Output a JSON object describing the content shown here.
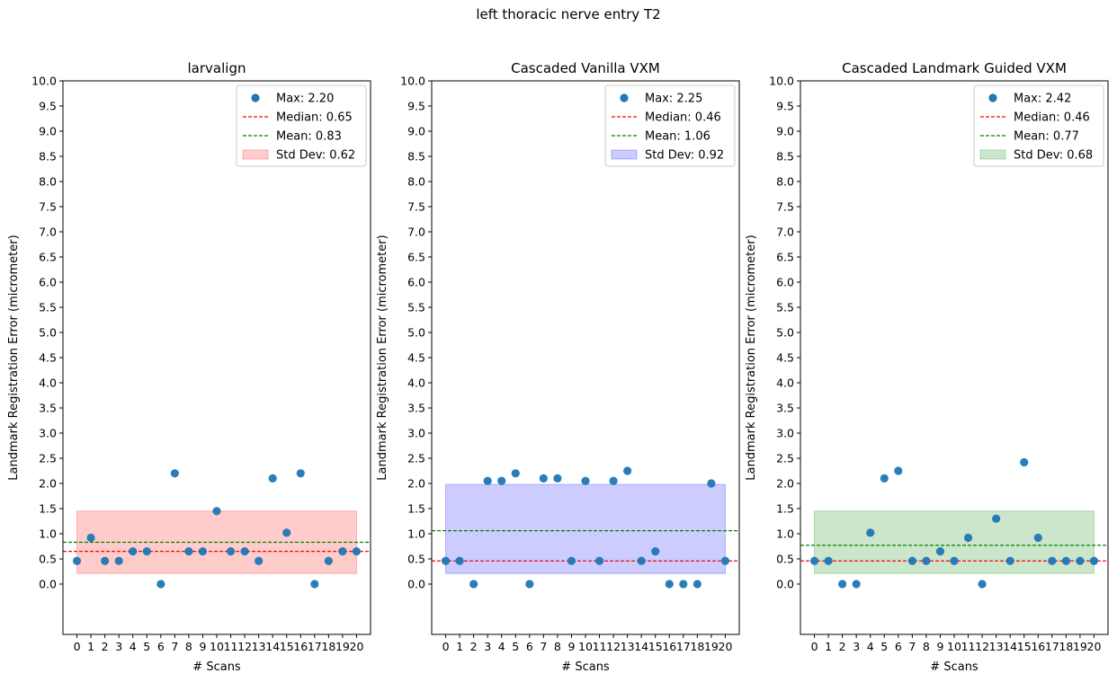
{
  "suptitle": "left thoracic nerve entry T2",
  "colors": {
    "points": "#1f77b4",
    "median": "#ff0000",
    "mean": "#008000",
    "band_fill_red": "#ff0000",
    "band_fill_blue": "#0000ff",
    "band_fill_green": "#008000"
  },
  "chart_data": [
    {
      "type": "scatter",
      "title": "larvalign",
      "xlabel": "# Scans",
      "ylabel": "Landmark Registration Error (micrometer)",
      "ylim": [
        -1.0,
        10.0
      ],
      "yticks": [
        "0.0",
        "0.5",
        "1.0",
        "1.5",
        "2.0",
        "2.5",
        "3.0",
        "3.5",
        "4.0",
        "4.5",
        "5.0",
        "5.5",
        "6.0",
        "6.5",
        "7.0",
        "7.5",
        "8.0",
        "8.5",
        "9.0",
        "9.5",
        "10.0"
      ],
      "x": [
        0,
        1,
        2,
        3,
        4,
        5,
        6,
        7,
        8,
        9,
        10,
        11,
        12,
        13,
        14,
        15,
        16,
        17,
        18,
        19,
        20
      ],
      "values": [
        0.46,
        0.92,
        0.46,
        0.46,
        0.65,
        0.65,
        0.0,
        2.2,
        0.65,
        0.65,
        1.45,
        0.65,
        0.65,
        0.46,
        2.1,
        1.02,
        2.2,
        0.0,
        0.46,
        0.65,
        0.65
      ],
      "median": 0.65,
      "mean": 0.83,
      "std": 0.62,
      "band_color": "#ff0000",
      "legend": {
        "placement": "upper right",
        "max_label": "Max: 2.20",
        "median_label": "Median: 0.65",
        "mean_label": "Mean: 0.83",
        "std_label": "Std Dev: 0.62"
      }
    },
    {
      "type": "scatter",
      "title": "Cascaded Vanilla VXM",
      "xlabel": "# Scans",
      "ylabel": "Landmark Registration Error (micrometer)",
      "ylim": [
        -1.0,
        10.0
      ],
      "yticks": [
        "0.0",
        "0.5",
        "1.0",
        "1.5",
        "2.0",
        "2.5",
        "3.0",
        "3.5",
        "4.0",
        "4.5",
        "5.0",
        "5.5",
        "6.0",
        "6.5",
        "7.0",
        "7.5",
        "8.0",
        "8.5",
        "9.0",
        "9.5",
        "10.0"
      ],
      "x": [
        0,
        1,
        2,
        3,
        4,
        5,
        6,
        7,
        8,
        9,
        10,
        11,
        12,
        13,
        14,
        15,
        16,
        17,
        18,
        19,
        20
      ],
      "values": [
        0.46,
        0.46,
        0.0,
        2.05,
        2.05,
        2.2,
        0.0,
        2.1,
        2.1,
        0.46,
        2.05,
        0.46,
        2.05,
        2.25,
        0.46,
        0.65,
        0.0,
        0.0,
        0.0,
        2.0,
        0.46
      ],
      "median": 0.46,
      "mean": 1.06,
      "std": 0.92,
      "band_color": "#0000ff",
      "legend": {
        "placement": "upper right",
        "max_label": "Max: 2.25",
        "median_label": "Median: 0.46",
        "mean_label": "Mean: 1.06",
        "std_label": "Std Dev: 0.92"
      }
    },
    {
      "type": "scatter",
      "title": "Cascaded Landmark Guided VXM",
      "xlabel": "# Scans",
      "ylabel": "Landmark Registration Error (micrometer)",
      "ylim": [
        -1.0,
        10.0
      ],
      "yticks": [
        "0.0",
        "0.5",
        "1.0",
        "1.5",
        "2.0",
        "2.5",
        "3.0",
        "3.5",
        "4.0",
        "4.5",
        "5.0",
        "5.5",
        "6.0",
        "6.5",
        "7.0",
        "7.5",
        "8.0",
        "8.5",
        "9.0",
        "9.5",
        "10.0"
      ],
      "x": [
        0,
        1,
        2,
        3,
        4,
        5,
        6,
        7,
        8,
        9,
        10,
        11,
        12,
        13,
        14,
        15,
        16,
        17,
        18,
        19,
        20
      ],
      "values": [
        0.46,
        0.46,
        0.0,
        0.0,
        1.02,
        2.1,
        2.25,
        0.46,
        0.46,
        0.65,
        0.46,
        0.92,
        0.0,
        1.3,
        0.46,
        2.42,
        0.92,
        0.46,
        0.46,
        0.46,
        0.46
      ],
      "median": 0.46,
      "mean": 0.77,
      "std": 0.68,
      "band_color": "#008000",
      "legend": {
        "placement": "upper right",
        "max_label": "Max: 2.42",
        "median_label": "Median: 0.46",
        "mean_label": "Mean: 0.77",
        "std_label": "Std Dev: 0.68"
      }
    }
  ]
}
